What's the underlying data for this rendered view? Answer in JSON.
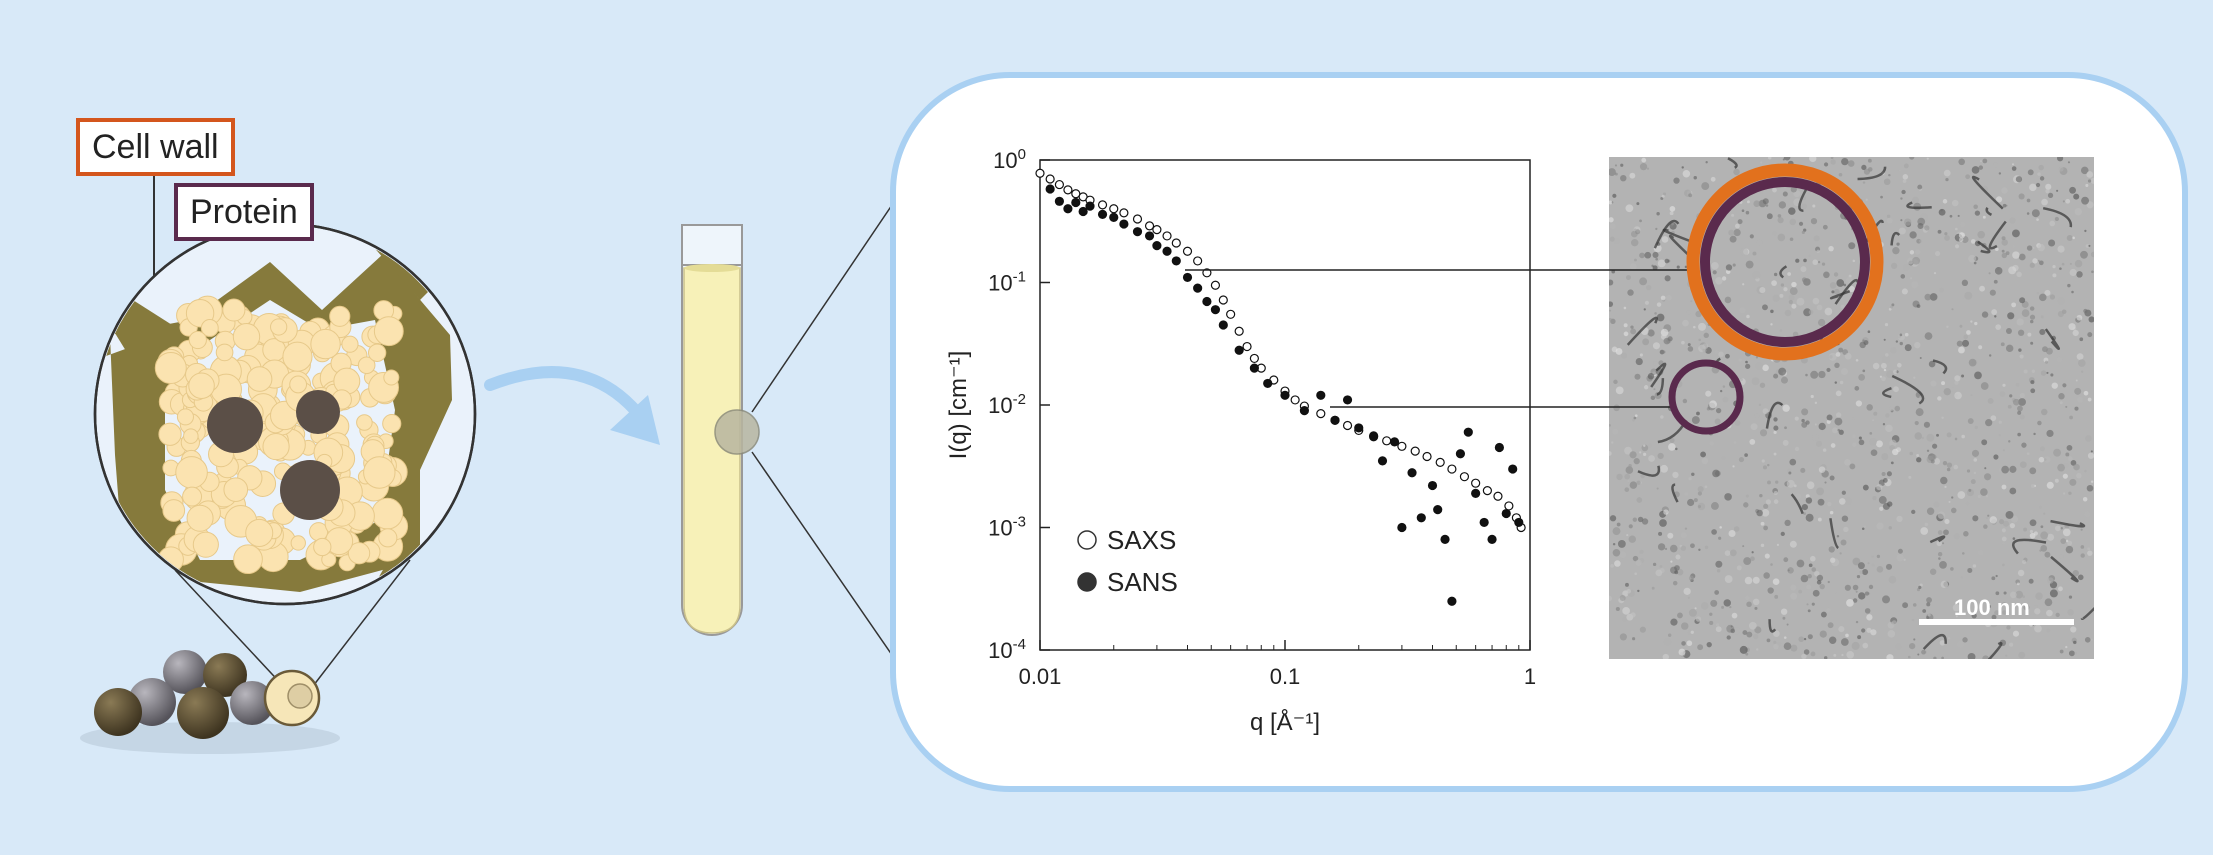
{
  "labels": {
    "cell_wall": "Cell wall",
    "protein": "Protein"
  },
  "colors": {
    "background": "#d8e9f8",
    "cell_wall_border": "#d4561d",
    "protein_border": "#5a2a4d",
    "cell_wall_fill": "#867a3c",
    "protein_body": "#5b4f47",
    "starch_granule": "#fbe3b0",
    "arrow": "#a9d0f2",
    "tube_liquid": "#f7f1b8"
  },
  "tem_image": {
    "scale_bar_label": "100 nm"
  },
  "chart_data": {
    "type": "scatter",
    "title": "",
    "xlabel": "q [Å⁻¹]",
    "ylabel": "I(q) [cm⁻¹]",
    "x_scale": "log",
    "y_scale": "log",
    "xlim": [
      0.01,
      1
    ],
    "ylim": [
      0.0001,
      1
    ],
    "x_ticks": [
      "0.01",
      "0.1",
      "1"
    ],
    "y_ticks": [
      {
        "base": "10",
        "exp": "0"
      },
      {
        "base": "10",
        "exp": "-1"
      },
      {
        "base": "10",
        "exp": "-2"
      },
      {
        "base": "10",
        "exp": "-3"
      },
      {
        "base": "10",
        "exp": "-4"
      }
    ],
    "legend_position": "bottom-left",
    "series": [
      {
        "name": "SAXS",
        "marker": "open-circle",
        "points": [
          [
            0.01,
            0.78
          ],
          [
            0.011,
            0.7
          ],
          [
            0.012,
            0.63
          ],
          [
            0.013,
            0.57
          ],
          [
            0.014,
            0.53
          ],
          [
            0.015,
            0.5
          ],
          [
            0.016,
            0.47
          ],
          [
            0.018,
            0.43
          ],
          [
            0.02,
            0.4
          ],
          [
            0.022,
            0.37
          ],
          [
            0.025,
            0.33
          ],
          [
            0.028,
            0.29
          ],
          [
            0.03,
            0.27
          ],
          [
            0.033,
            0.24
          ],
          [
            0.036,
            0.21
          ],
          [
            0.04,
            0.18
          ],
          [
            0.044,
            0.15
          ],
          [
            0.048,
            0.12
          ],
          [
            0.052,
            0.095
          ],
          [
            0.056,
            0.072
          ],
          [
            0.06,
            0.055
          ],
          [
            0.065,
            0.04
          ],
          [
            0.07,
            0.03
          ],
          [
            0.075,
            0.024
          ],
          [
            0.08,
            0.02
          ],
          [
            0.09,
            0.016
          ],
          [
            0.1,
            0.013
          ],
          [
            0.11,
            0.011
          ],
          [
            0.12,
            0.0098
          ],
          [
            0.14,
            0.0085
          ],
          [
            0.16,
            0.0075
          ],
          [
            0.18,
            0.0068
          ],
          [
            0.2,
            0.0062
          ],
          [
            0.23,
            0.0056
          ],
          [
            0.26,
            0.0051
          ],
          [
            0.3,
            0.0046
          ],
          [
            0.34,
            0.0042
          ],
          [
            0.38,
            0.0038
          ],
          [
            0.43,
            0.0034
          ],
          [
            0.48,
            0.003
          ],
          [
            0.54,
            0.0026
          ],
          [
            0.6,
            0.0023
          ],
          [
            0.67,
            0.002
          ],
          [
            0.74,
            0.0018
          ],
          [
            0.82,
            0.0015
          ],
          [
            0.88,
            0.0012
          ],
          [
            0.92,
            0.001
          ]
        ]
      },
      {
        "name": "SANS",
        "marker": "filled-circle",
        "points": [
          [
            0.011,
            0.58
          ],
          [
            0.012,
            0.46
          ],
          [
            0.013,
            0.4
          ],
          [
            0.014,
            0.45
          ],
          [
            0.015,
            0.38
          ],
          [
            0.016,
            0.42
          ],
          [
            0.018,
            0.36
          ],
          [
            0.02,
            0.34
          ],
          [
            0.022,
            0.3
          ],
          [
            0.025,
            0.26
          ],
          [
            0.028,
            0.24
          ],
          [
            0.03,
            0.2
          ],
          [
            0.033,
            0.18
          ],
          [
            0.036,
            0.15
          ],
          [
            0.04,
            0.11
          ],
          [
            0.044,
            0.09
          ],
          [
            0.048,
            0.07
          ],
          [
            0.052,
            0.06
          ],
          [
            0.056,
            0.045
          ],
          [
            0.065,
            0.028
          ],
          [
            0.075,
            0.02
          ],
          [
            0.085,
            0.015
          ],
          [
            0.1,
            0.012
          ],
          [
            0.12,
            0.009
          ],
          [
            0.14,
            0.012
          ],
          [
            0.16,
            0.0075
          ],
          [
            0.18,
            0.011
          ],
          [
            0.2,
            0.0065
          ],
          [
            0.23,
            0.0055
          ],
          [
            0.25,
            0.0035
          ],
          [
            0.28,
            0.005
          ],
          [
            0.3,
            0.001
          ],
          [
            0.33,
            0.0028
          ],
          [
            0.36,
            0.0012
          ],
          [
            0.4,
            0.0022
          ],
          [
            0.42,
            0.0014
          ],
          [
            0.45,
            0.0008
          ],
          [
            0.48,
            0.00025
          ],
          [
            0.52,
            0.004
          ],
          [
            0.56,
            0.006
          ],
          [
            0.6,
            0.0019
          ],
          [
            0.65,
            0.0011
          ],
          [
            0.7,
            0.0008
          ],
          [
            0.75,
            0.0045
          ],
          [
            0.8,
            0.0013
          ],
          [
            0.85,
            0.003
          ],
          [
            0.9,
            0.0011
          ]
        ]
      }
    ]
  }
}
